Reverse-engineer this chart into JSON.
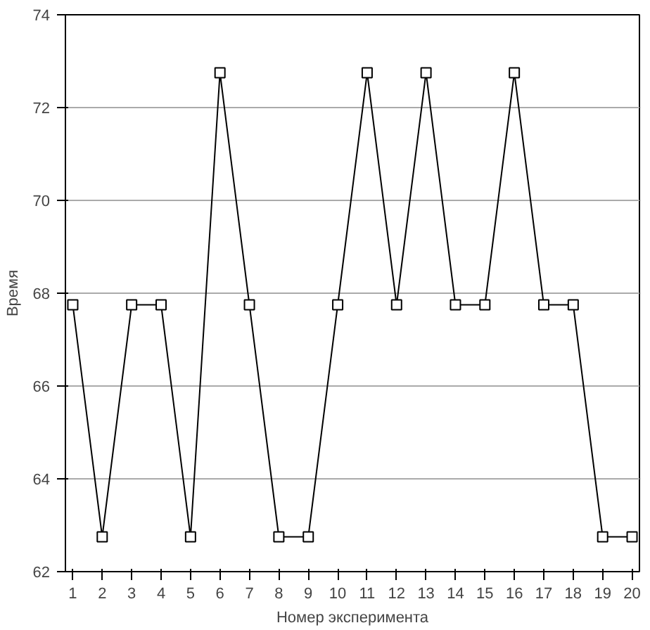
{
  "chart_data": {
    "type": "line",
    "xlabel": "Номер эксперимента",
    "ylabel": "Время",
    "x": [
      1,
      2,
      3,
      4,
      5,
      6,
      7,
      8,
      9,
      10,
      11,
      12,
      13,
      14,
      15,
      16,
      17,
      18,
      19,
      20
    ],
    "series": [
      {
        "color": "#000000",
        "values": [
          67.75,
          62.75,
          67.75,
          67.75,
          62.75,
          72.75,
          67.75,
          62.75,
          62.75,
          67.75,
          72.75,
          67.75,
          72.75,
          67.75,
          67.75,
          72.75,
          67.75,
          67.75,
          62.75,
          62.75
        ]
      }
    ],
    "xlim": [
      0.75,
      20.25
    ],
    "xticks": [
      1,
      2,
      3,
      4,
      5,
      6,
      7,
      8,
      9,
      10,
      11,
      12,
      13,
      14,
      15,
      16,
      17,
      18,
      19,
      20
    ],
    "ylim": [
      62,
      74
    ],
    "yticks": [
      62,
      64,
      66,
      68,
      70,
      72,
      74
    ],
    "grid": "y",
    "marker": "square",
    "line_style": "solid"
  }
}
